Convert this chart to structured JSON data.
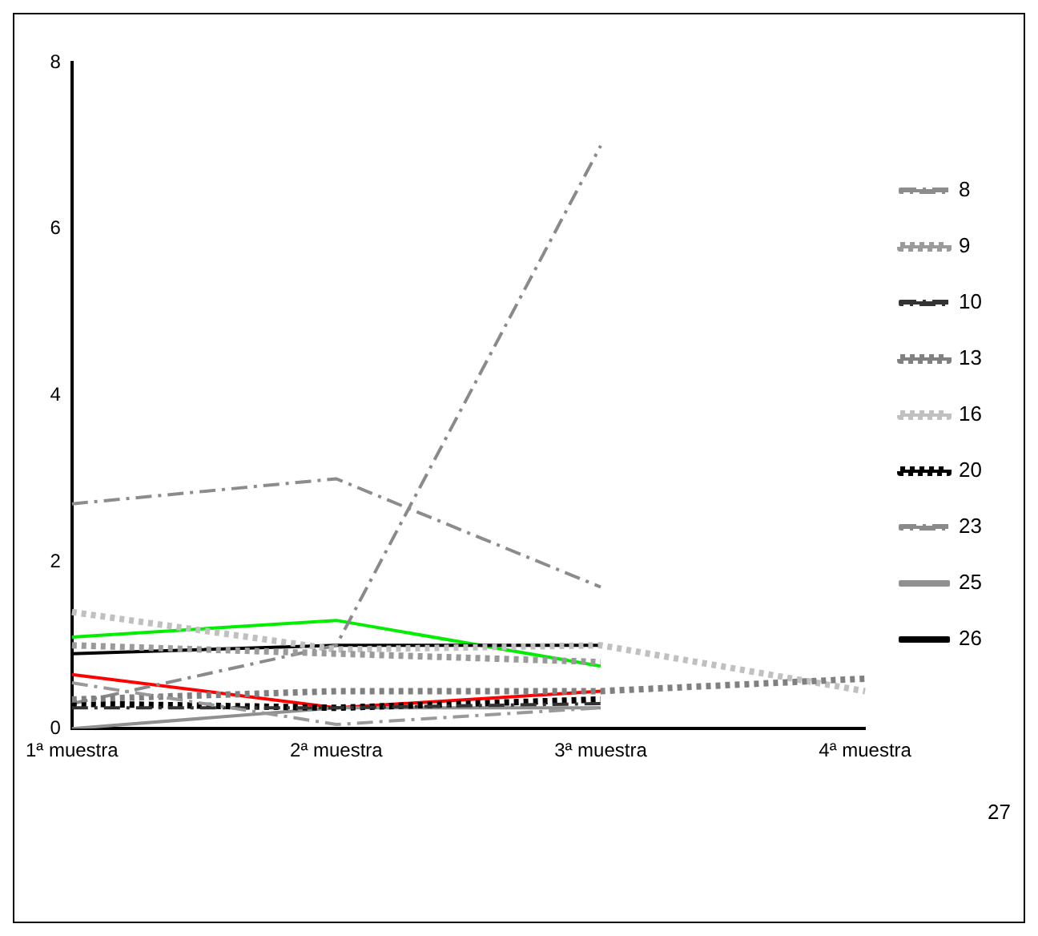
{
  "chart_data": {
    "type": "line",
    "categories": [
      "1ª muestra",
      "2ª muestra",
      "3ª muestra",
      "4ª muestra"
    ],
    "ylim": [
      0,
      8
    ],
    "yticks": [
      0,
      2,
      4,
      6,
      8
    ],
    "grid": false,
    "legend": "right",
    "marker": "none",
    "annotations": [
      "27"
    ],
    "series": [
      {
        "color": "#999999",
        "line_style": "dashed",
        "values": [
          0.55,
          0.05,
          0.25,
          null
        ]
      },
      {
        "name": "8",
        "color": "#8c8c8c",
        "line_style": "dashed",
        "values": [
          2.7,
          3.0,
          1.7,
          null
        ]
      },
      {
        "name": "9",
        "color": "#9a9a9a",
        "line_style": "dotted",
        "values": [
          1.0,
          0.9,
          0.8,
          null
        ]
      },
      {
        "name": "10",
        "color": "#333333",
        "line_style": "dashed",
        "values": [
          0.25,
          0.25,
          0.3,
          null
        ]
      },
      {
        "name": "13",
        "color": "#808080",
        "line_style": "dotted",
        "values": [
          0.35,
          0.45,
          0.45,
          0.6
        ]
      },
      {
        "name": "16",
        "color": "#c0c0c0",
        "line_style": "dotted",
        "values": [
          1.4,
          0.95,
          1.0,
          0.45
        ]
      },
      {
        "name": "20",
        "color": "#000000",
        "line_style": "dotted",
        "values": [
          0.3,
          0.25,
          0.35,
          null
        ]
      },
      {
        "name": "23",
        "color": "#8a8a8a",
        "line_style": "dashed",
        "values": [
          0.3,
          1.0,
          7.0,
          null
        ]
      },
      {
        "name": "25",
        "color": "#909090",
        "line_style": "solid",
        "values": [
          0.0,
          0.25,
          0.25,
          null
        ]
      },
      {
        "name": "26",
        "color": "#000000",
        "line_style": "solid",
        "values": [
          0.9,
          1.0,
          1.0,
          null
        ]
      },
      {
        "color": "#00ee00",
        "line_style": "solid",
        "values": [
          1.1,
          1.3,
          0.75,
          null
        ]
      },
      {
        "color": "#ff0000",
        "line_style": "solid",
        "values": [
          0.65,
          0.25,
          0.45,
          null
        ]
      }
    ]
  }
}
